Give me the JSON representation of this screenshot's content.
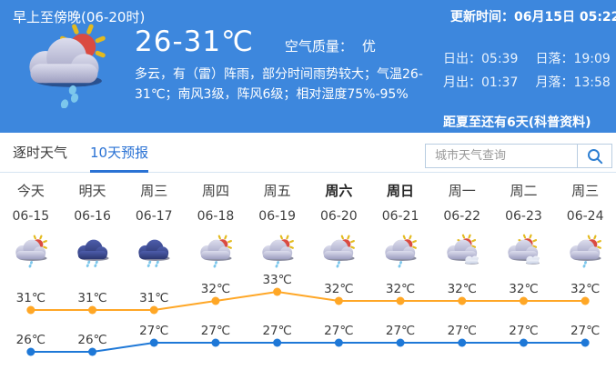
{
  "header": {
    "period_title": "早上至傍晚(06-20时)",
    "temp_range": "26-31℃",
    "air_quality_label": "空气质量：",
    "air_quality_value": "优",
    "description": "多云，有（雷）阵雨，部分时间雨势较大；气温26-31℃；南风3级，阵风6级；相对湿度75%-95%",
    "current_icon": "sun-cloud-rain-icon",
    "update_time": "更新时间：06月15日 05:22",
    "sun_moon": {
      "sunrise_label": "日出：",
      "sunrise_value": "05:39",
      "sunset_label": "日落：",
      "sunset_value": "19:09",
      "moonrise_label": "月出：",
      "moonrise_value": "01:37",
      "moonset_label": "月落：",
      "moonset_value": "13:58"
    },
    "solstice_note": "距夏至还有6天(科普资料)"
  },
  "tabs": [
    {
      "label": "逐时天气",
      "active": false
    },
    {
      "label": "10天预报",
      "active": true
    }
  ],
  "search": {
    "placeholder": "城市天气查询",
    "icon": "search-icon"
  },
  "chart_data": {
    "type": "line",
    "title": "10天预报",
    "categories": [
      "今天",
      "明天",
      "周三",
      "周四",
      "周五",
      "周六",
      "周日",
      "周一",
      "周二",
      "周三"
    ],
    "dates": [
      "06-15",
      "06-16",
      "06-17",
      "06-18",
      "06-19",
      "06-20",
      "06-21",
      "06-22",
      "06-23",
      "06-24"
    ],
    "weekend": [
      false,
      false,
      false,
      false,
      false,
      true,
      true,
      false,
      false,
      false
    ],
    "icons": [
      "shower",
      "rain",
      "rain",
      "shower",
      "shower",
      "shower",
      "shower",
      "cloudy",
      "cloudy",
      "shower"
    ],
    "series": [
      {
        "name": "high",
        "values": [
          31,
          31,
          31,
          32,
          33,
          32,
          32,
          32,
          32,
          32
        ],
        "unit": "℃",
        "color": "#ffa726"
      },
      {
        "name": "low",
        "values": [
          26,
          26,
          27,
          27,
          27,
          27,
          27,
          27,
          27,
          27
        ],
        "unit": "℃",
        "color": "#1e78d7"
      }
    ],
    "ylim": [
      26,
      33
    ],
    "grid": false,
    "legend": "none"
  },
  "colors": {
    "header_bg": "#3d87dd",
    "accent_blue": "#2a72d4",
    "high_line": "#ffa726",
    "low_line": "#1e78d7",
    "tab_border": "#d6e4f1"
  }
}
